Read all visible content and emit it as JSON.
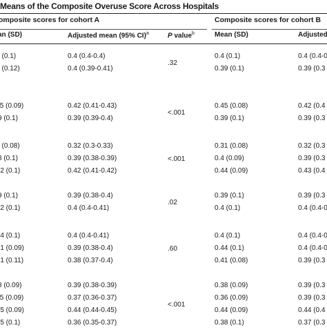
{
  "table": {
    "title": "Means of the Composite Overuse Score Across Hospitals",
    "group_headers": {
      "cohort_a": "omposite scores for cohort A",
      "cohort_b": "Composite scores for cohort B"
    },
    "columns": {
      "mean_a": "an (SD)",
      "adjusted_a": "Adjusted mean (95% CI)",
      "adjusted_a_sup": "a",
      "pvalue": "P",
      "pvalue_rest": " value",
      "pvalue_sup": "b",
      "mean_b": "Mean (SD)",
      "adjusted_b": "Adjusted"
    },
    "groups": [
      {
        "p_value": ".32",
        "rows": [
          {
            "mean_a": ". (0.1)",
            "adjusted_a": "0.4 (0.4-0.4)",
            "mean_b": "0.4 (0.1)",
            "adjusted_b": "0.4 (0.4-0"
          },
          {
            "mean_a": ". (0.12)",
            "adjusted_a": "0.4 (0.39-0.41)",
            "mean_b": "0.39 (0.1)",
            "adjusted_b": "0.39 (0.3"
          }
        ]
      },
      {
        "p_value": "<.001",
        "rows": [
          {
            "mean_a": ".5 (0.09)",
            "adjusted_a": "0.42 (0.41-0.43)",
            "mean_b": "0.45 (0.08)",
            "adjusted_b": "0.42 (0.4"
          },
          {
            "mean_a": "9 (0.1)",
            "adjusted_a": "0.39 (0.39-0.4)",
            "mean_b": "0.39 (0.1)",
            "adjusted_b": "0.39 (0.3"
          }
        ]
      },
      {
        "p_value": "<.001",
        "rows": [
          {
            "mean_a": ". (0.08)",
            "adjusted_a": "0.32 (0.3-0.33)",
            "mean_b": "0.31 (0.08)",
            "adjusted_b": "0.32 (0.3"
          },
          {
            "mean_a": "8 (0.1)",
            "adjusted_a": "0.39 (0.38-0.39)",
            "mean_b": "0.4 (0.09)",
            "adjusted_b": "0.39 (0.3"
          },
          {
            "mean_a": "·2 (0.1)",
            "adjusted_a": "0.42 (0.41-0.42)",
            "mean_b": "0.44 (0.09)",
            "adjusted_b": "0.43 (0.4"
          }
        ]
      },
      {
        "p_value": ".02",
        "rows": [
          {
            "mean_a": "9 (0.1)",
            "adjusted_a": "0.39 (0.38-0.4)",
            "mean_b": "0.39 (0.1)",
            "adjusted_b": "0.39 (0.3"
          },
          {
            "mean_a": "·2 (0.1)",
            "adjusted_a": "0.4 (0.4-0.41)",
            "mean_b": "0.4 (0.1)",
            "adjusted_b": "0.4 (0.4-0"
          }
        ]
      },
      {
        "p_value": ".60",
        "rows": [
          {
            "mean_a": "·4 (0.1)",
            "adjusted_a": "0.4 (0.4-0.41)",
            "mean_b": "0.4 (0.1)",
            "adjusted_b": "0.4 (0.4-0"
          },
          {
            "mean_a": "·1 (0.09)",
            "adjusted_a": "0.39 (0.38-0.4)",
            "mean_b": "0.44 (0.1)",
            "adjusted_b": "0.4 (0.4-0"
          },
          {
            "mean_a": "·1 (0.11)",
            "adjusted_a": "0.38 (0.37-0.4)",
            "mean_b": "0.41 (0.08)",
            "adjusted_b": "0.39 (0.3"
          }
        ]
      },
      {
        "p_value": "<.001",
        "rows": [
          {
            "mean_a": "8 (0.09)",
            "adjusted_a": "0.39 (0.38-0.39)",
            "mean_b": "0.38 (0.09)",
            "adjusted_b": "0.39 (0.3"
          },
          {
            "mean_a": ".5 (0.09)",
            "adjusted_a": "0.37 (0.36-0.37)",
            "mean_b": "0.36 (0.09)",
            "adjusted_b": "0.39 (0.3"
          },
          {
            "mean_a": "·5 (0.09)",
            "adjusted_a": "0.44 (0.44-0.45)",
            "mean_b": "0.44 (0.09)",
            "adjusted_b": "0.44 (0.4"
          },
          {
            "mean_a": "·5 (0.1)",
            "adjusted_a": "0.36 (0.35-0.37)",
            "mean_b": "0.38 (0.1)",
            "adjusted_b": "0.37 (0.3"
          }
        ]
      }
    ]
  }
}
